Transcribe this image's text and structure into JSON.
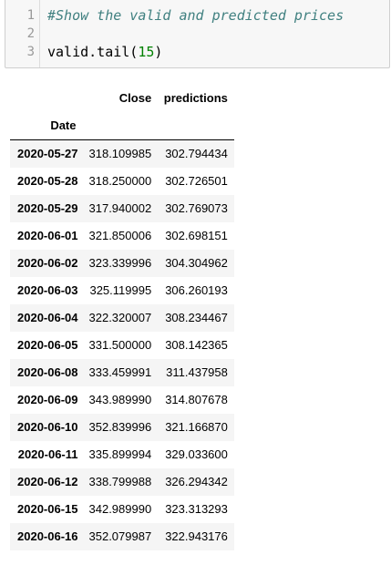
{
  "code_cell": {
    "line_numbers": [
      "1",
      "2",
      "3"
    ],
    "comment": "#Show the valid and predicted prices",
    "code_prefix": "valid.tail(",
    "code_arg": "15",
    "code_suffix": ")"
  },
  "dataframe": {
    "columns": [
      "Close",
      "predictions"
    ],
    "index_name": "Date",
    "rows": [
      {
        "date": "2020-05-27",
        "close": "318.109985",
        "pred": "302.794434"
      },
      {
        "date": "2020-05-28",
        "close": "318.250000",
        "pred": "302.726501"
      },
      {
        "date": "2020-05-29",
        "close": "317.940002",
        "pred": "302.769073"
      },
      {
        "date": "2020-06-01",
        "close": "321.850006",
        "pred": "302.698151"
      },
      {
        "date": "2020-06-02",
        "close": "323.339996",
        "pred": "304.304962"
      },
      {
        "date": "2020-06-03",
        "close": "325.119995",
        "pred": "306.260193"
      },
      {
        "date": "2020-06-04",
        "close": "322.320007",
        "pred": "308.234467"
      },
      {
        "date": "2020-06-05",
        "close": "331.500000",
        "pred": "308.142365"
      },
      {
        "date": "2020-06-08",
        "close": "333.459991",
        "pred": "311.437958"
      },
      {
        "date": "2020-06-09",
        "close": "343.989990",
        "pred": "314.807678"
      },
      {
        "date": "2020-06-10",
        "close": "352.839996",
        "pred": "321.166870"
      },
      {
        "date": "2020-06-11",
        "close": "335.899994",
        "pred": "329.033600"
      },
      {
        "date": "2020-06-12",
        "close": "338.799988",
        "pred": "326.294342"
      },
      {
        "date": "2020-06-15",
        "close": "342.989990",
        "pred": "323.313293"
      },
      {
        "date": "2020-06-16",
        "close": "352.079987",
        "pred": "322.943176"
      }
    ]
  }
}
